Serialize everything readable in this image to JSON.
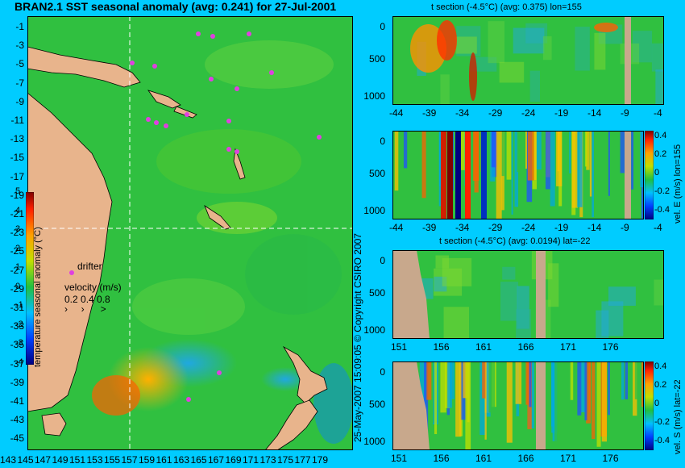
{
  "map": {
    "title": "BRAN2.1 SST seasonal anomaly (avg: 0.241) for 27-Jul-2001",
    "lat_labels": [
      "-1",
      "-3",
      "-5",
      "-7",
      "-9",
      "-11",
      "-13",
      "-15",
      "-17",
      "-19",
      "-21",
      "-23",
      "-25",
      "-27",
      "-29",
      "-31",
      "-33",
      "-35",
      "-37",
      "-39",
      "-41",
      "-43",
      "-45"
    ],
    "lon_labels": [
      "143",
      "145",
      "147",
      "149",
      "151",
      "153",
      "155",
      "157",
      "159",
      "161",
      "163",
      "165",
      "167",
      "169",
      "171",
      "173",
      "175",
      "177",
      "179"
    ],
    "colorbar_label": "temperature seasonal anomaly (°C)",
    "colorbar_ticks": [
      "5",
      "4",
      "3",
      "2",
      "1",
      "0",
      "-1",
      "-2",
      "-3",
      "-4"
    ],
    "drifter_label": "drifter",
    "velocity_label": "velocity (m/s)",
    "velocity_scale": "0.2 0.4 0.8",
    "copyright": "25-May-2007 15:09:05  © Copyright CSIRO 2007",
    "colors": {
      "land": "#e8b48c",
      "ocean_mid": "#22c040",
      "drifter": "#e040e0",
      "frame_bg": "#00ccff"
    }
  },
  "panels": [
    {
      "title": "t section (-4.5°C) (avg: 0.375) lon=155",
      "x_ticks": [
        "-44",
        "-39",
        "-34",
        "-29",
        "-24",
        "-19",
        "-14",
        "-9",
        "-4"
      ],
      "y_ticks": [
        "0",
        "500",
        "1000"
      ],
      "side_label": ""
    },
    {
      "title": "",
      "x_ticks": [
        "-44",
        "-39",
        "-34",
        "-29",
        "-24",
        "-19",
        "-14",
        "-9",
        "-4"
      ],
      "y_ticks": [
        "0",
        "500",
        "1000"
      ],
      "side_label": "vel. E (m/s) lon=155",
      "colorbar_ticks": [
        "0.4",
        "0.2",
        "0",
        "-0.2",
        "-0.4"
      ]
    },
    {
      "title": "t section (-4.5°C) (avg: 0.0194) lat=-22",
      "x_ticks": [
        "151",
        "156",
        "161",
        "166",
        "171",
        "176"
      ],
      "y_ticks": [
        "0",
        "500",
        "1000"
      ],
      "side_label": ""
    },
    {
      "title": "",
      "x_ticks": [
        "151",
        "156",
        "161",
        "166",
        "171",
        "176"
      ],
      "y_ticks": [
        "0",
        "500",
        "1000"
      ],
      "side_label": "vel. S (m/s) lat=-22",
      "colorbar_ticks": [
        "0.4",
        "0.2",
        "0",
        "-0.2",
        "-0.4"
      ]
    }
  ]
}
